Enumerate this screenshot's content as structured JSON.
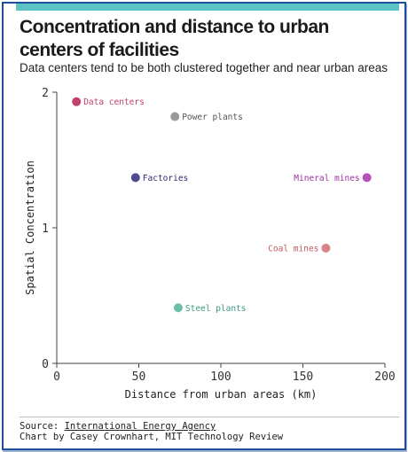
{
  "header": {
    "title": "Concentration and distance to urban centers of facilities",
    "subtitle": "Data centers tend to be both clustered together and near urban areas",
    "accent_color": "#5cc4c4"
  },
  "chart_data": {
    "type": "scatter",
    "title": "Concentration and distance to urban centers of facilities",
    "subtitle": "Data centers tend to be both clustered together and near urban areas",
    "xlabel": "Distance from urban areas (km)",
    "ylabel": "Spatial Concentration",
    "xlim": [
      0,
      200
    ],
    "ylim": [
      0,
      2
    ],
    "xticks": [
      "0",
      "50",
      "100",
      "150",
      "200"
    ],
    "yticks": [
      "0",
      "1",
      "2"
    ],
    "grid": false,
    "points": [
      {
        "label": "Data centers",
        "x": 12,
        "y": 1.93,
        "color": "#c2416b",
        "label_color": "#c2416b",
        "label_side": "right"
      },
      {
        "label": "Power plants",
        "x": 72,
        "y": 1.82,
        "color": "#999999",
        "label_color": "#555555",
        "label_side": "right"
      },
      {
        "label": "Factories",
        "x": 48,
        "y": 1.37,
        "color": "#4e4a8e",
        "label_color": "#2e2a6e",
        "label_side": "right"
      },
      {
        "label": "Mineral mines",
        "x": 189,
        "y": 1.37,
        "color": "#b84fba",
        "label_color": "#9b2f9d",
        "label_side": "left"
      },
      {
        "label": "Coal mines",
        "x": 164,
        "y": 0.85,
        "color": "#d9838a",
        "label_color": "#c0595f",
        "label_side": "left"
      },
      {
        "label": "Steel plants",
        "x": 74,
        "y": 0.41,
        "color": "#6bbfa8",
        "label_color": "#3a9a82",
        "label_side": "right"
      }
    ]
  },
  "footer": {
    "source_prefix": "Source: ",
    "source_link": "International Energy Agency",
    "credit": "Chart by Casey Crownhart, MIT Technology Review"
  }
}
